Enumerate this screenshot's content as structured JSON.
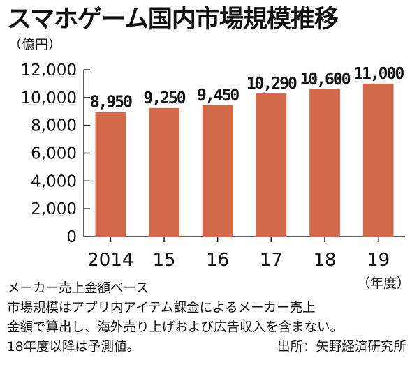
{
  "header": {
    "title": "スマホゲーム国内市場規模推移",
    "unit": "（億円）"
  },
  "chart_data": {
    "type": "bar",
    "categories": [
      "2014",
      "15",
      "16",
      "17",
      "18",
      "19"
    ],
    "values": [
      8950,
      9250,
      9450,
      10290,
      10600,
      11000
    ],
    "value_labels": [
      "8,950",
      "9,250",
      "9,450",
      "10,290",
      "10,600",
      "11,000"
    ],
    "ylim": [
      0,
      12000
    ],
    "yticks": [
      0,
      2000,
      4000,
      6000,
      8000,
      10000,
      12000
    ],
    "ytick_labels": [
      "0",
      "2,000",
      "4,000",
      "6,000",
      "8,000",
      "10,000",
      "12,000"
    ],
    "ylabel": "（億円）",
    "xlabel": "（年度）",
    "grid": false,
    "bar_color": "#d4694a"
  },
  "x_unit": "（年度）",
  "notes": {
    "basis": "メーカー売上金額ベース",
    "line1": "市場規模はアプリ内アイテム課金によるメーカー売上",
    "line2": "金額で算出し、海外売り上げおよび広告収入を含まない。",
    "forecast": "18年度以降は予測値。",
    "source": "出所：矢野経済研究所"
  }
}
